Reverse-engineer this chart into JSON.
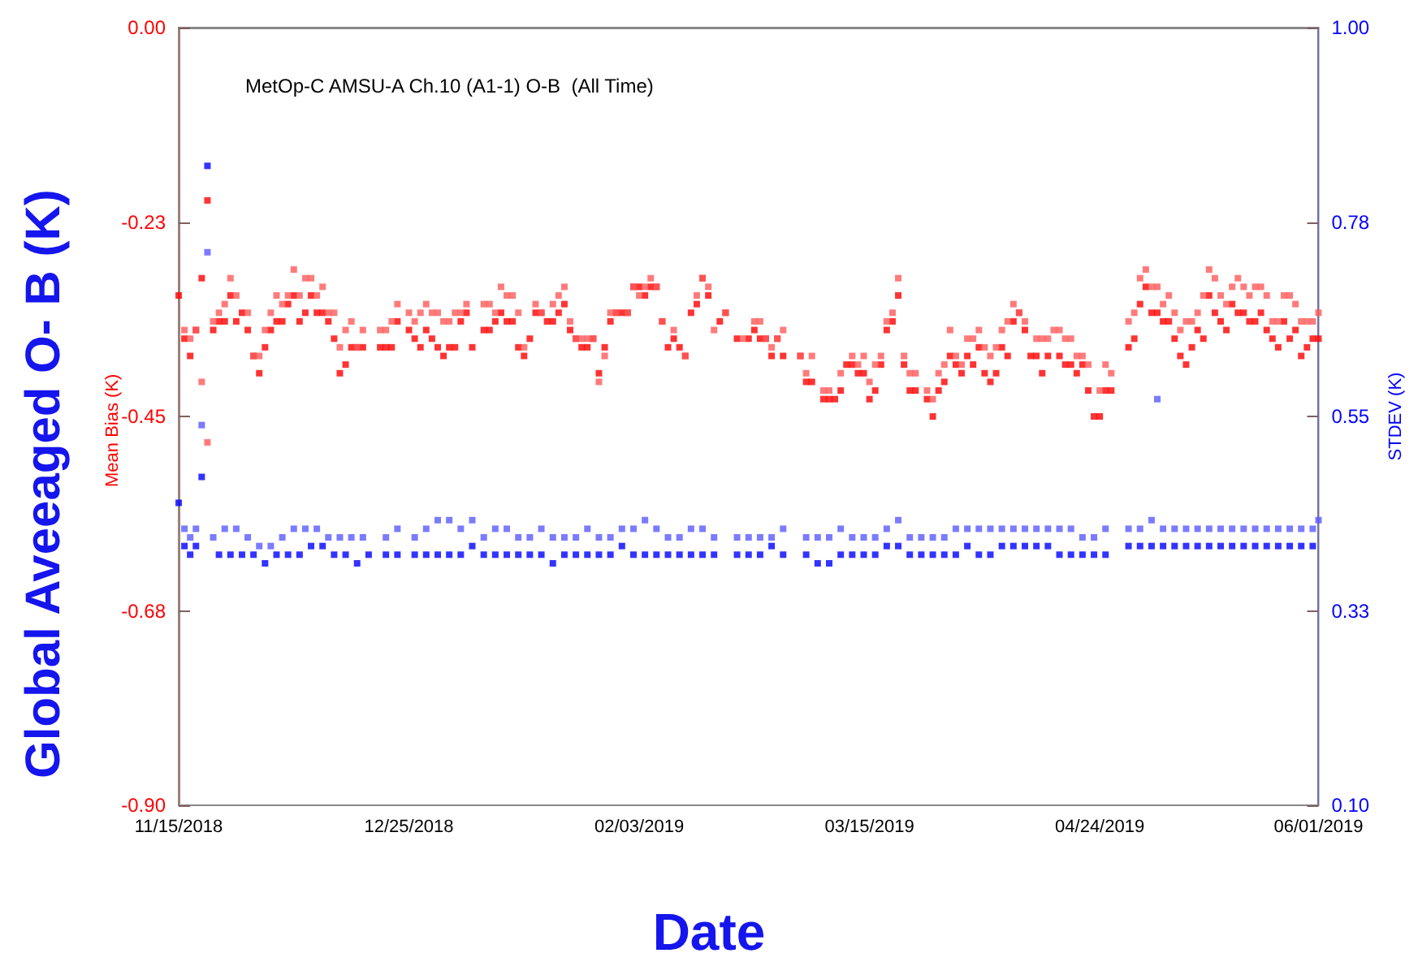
{
  "chart_data": {
    "type": "scatter",
    "title": "MetOp-C AMSU-A Ch.10 (A1-1) O-B  (All Time)",
    "xlabel": "Date",
    "ylabel": "Global Aveeaged O- B (K)",
    "y2label": "STDEV (K)",
    "annotations": [
      "Mean Bias (K)"
    ],
    "marker": "square",
    "xlim": [
      "2018-11-15",
      "2019-06-01"
    ],
    "xticks": [
      {
        "value": "2018-11-15",
        "label": "11/15/2018"
      },
      {
        "value": "2018-12-25",
        "label": "12/25/2018"
      },
      {
        "value": "2019-02-03",
        "label": "02/03/2019"
      },
      {
        "value": "2019-03-15",
        "label": "03/15/2019"
      },
      {
        "value": "2019-04-24",
        "label": "04/24/2019"
      },
      {
        "value": "2019-06-01",
        "label": "06/01/2019"
      }
    ],
    "ylim": [
      -0.9,
      0
    ],
    "yticks": [
      {
        "value": -0.9,
        "label": "-0.90"
      },
      {
        "value": -0.675,
        "label": "-0.68"
      },
      {
        "value": -0.45,
        "label": "-0.45"
      },
      {
        "value": -0.225,
        "label": "-0.23"
      },
      {
        "value": 0,
        "label": "0.00"
      }
    ],
    "y2lim": [
      0.1,
      1
    ],
    "y2ticks": [
      {
        "value": 0.1,
        "label": "0.10"
      },
      {
        "value": 0.325,
        "label": "0.33"
      },
      {
        "value": 0.55,
        "label": "0.55"
      },
      {
        "value": 0.775,
        "label": "0.78"
      },
      {
        "value": 1,
        "label": "1.00"
      }
    ],
    "series": [
      {
        "color": "#ff0000",
        "x": [
          "2018-11-15",
          "2018-11-16",
          "2018-11-17",
          "2018-11-18",
          "2018-11-19",
          "2018-11-20",
          "2018-11-21",
          "2018-11-22",
          "2018-11-23",
          "2018-11-24",
          "2018-11-25",
          "2018-11-26",
          "2018-11-27",
          "2018-11-28",
          "2018-11-29",
          "2018-11-30",
          "2018-12-01",
          "2018-12-02",
          "2018-12-03",
          "2018-12-04",
          "2018-12-05",
          "2018-12-06",
          "2018-12-07",
          "2018-12-08",
          "2018-12-09",
          "2018-12-10",
          "2018-12-11",
          "2018-12-12",
          "2018-12-13",
          "2018-12-14",
          "2018-12-15",
          "2018-12-16",
          "2018-12-17",
          "2018-12-20",
          "2018-12-21",
          "2018-12-22",
          "2018-12-23",
          "2018-12-25",
          "2018-12-26",
          "2018-12-27",
          "2018-12-28",
          "2018-12-29",
          "2018-12-30",
          "2018-12-31",
          "2019-01-01",
          "2019-01-02",
          "2019-01-03",
          "2019-01-04",
          "2019-01-05",
          "2019-01-07",
          "2019-01-08",
          "2019-01-09",
          "2019-01-10",
          "2019-01-11",
          "2019-01-12",
          "2019-01-13",
          "2019-01-14",
          "2019-01-15",
          "2019-01-16",
          "2019-01-17",
          "2019-01-18",
          "2019-01-19",
          "2019-01-20",
          "2019-01-21",
          "2019-01-22",
          "2019-01-23",
          "2019-01-24",
          "2019-01-25",
          "2019-01-26",
          "2019-01-27",
          "2019-01-28",
          "2019-01-29",
          "2019-01-30",
          "2019-01-31",
          "2019-02-01",
          "2019-02-02",
          "2019-02-03",
          "2019-02-04",
          "2019-02-05",
          "2019-02-06",
          "2019-02-07",
          "2019-02-08",
          "2019-02-09",
          "2019-02-10",
          "2019-02-11",
          "2019-02-12",
          "2019-02-13",
          "2019-02-14",
          "2019-02-15",
          "2019-02-17",
          "2019-02-18",
          "2019-02-20",
          "2019-02-22",
          "2019-02-23",
          "2019-02-24",
          "2019-02-25",
          "2019-02-26",
          "2019-02-27",
          "2019-02-28",
          "2019-03-03",
          "2019-03-04",
          "2019-03-05",
          "2019-03-07",
          "2019-03-08",
          "2019-03-09",
          "2019-03-10",
          "2019-03-11",
          "2019-03-12",
          "2019-03-13",
          "2019-03-14",
          "2019-03-15",
          "2019-03-16",
          "2019-03-17",
          "2019-03-18",
          "2019-03-19",
          "2019-03-20",
          "2019-03-21",
          "2019-03-22",
          "2019-03-23",
          "2019-03-25",
          "2019-03-26",
          "2019-03-27",
          "2019-03-28",
          "2019-03-29",
          "2019-03-30",
          "2019-03-31",
          "2019-04-01",
          "2019-04-02",
          "2019-04-03",
          "2019-04-04",
          "2019-04-05",
          "2019-04-06",
          "2019-04-07",
          "2019-04-08",
          "2019-04-09",
          "2019-04-10",
          "2019-04-11",
          "2019-04-12",
          "2019-04-13",
          "2019-04-14",
          "2019-04-15",
          "2019-04-17",
          "2019-04-18",
          "2019-04-19",
          "2019-04-20",
          "2019-04-21",
          "2019-04-22",
          "2019-04-23",
          "2019-04-24",
          "2019-04-25",
          "2019-04-26",
          "2019-04-29",
          "2019-04-30",
          "2019-05-01",
          "2019-05-02",
          "2019-05-03",
          "2019-05-04",
          "2019-05-05",
          "2019-05-06",
          "2019-05-07",
          "2019-05-08",
          "2019-05-09",
          "2019-05-10",
          "2019-05-11",
          "2019-05-12",
          "2019-05-13",
          "2019-05-14",
          "2019-05-15",
          "2019-05-16",
          "2019-05-17",
          "2019-05-18",
          "2019-05-19",
          "2019-05-20",
          "2019-05-21",
          "2019-05-22",
          "2019-05-23",
          "2019-05-24",
          "2019-05-25",
          "2019-05-26",
          "2019-05-27",
          "2019-05-28",
          "2019-05-29",
          "2019-05-30",
          "2019-05-31",
          "2019-06-01"
        ],
        "values": [
          -0.31,
          -0.36,
          -0.38,
          -0.35,
          -0.29,
          -0.2,
          -0.35,
          -0.34,
          -0.34,
          -0.31,
          -0.34,
          -0.33,
          -0.35,
          -0.38,
          -0.4,
          -0.37,
          -0.35,
          -0.34,
          -0.34,
          -0.32,
          -0.31,
          -0.34,
          -0.33,
          -0.31,
          -0.33,
          -0.33,
          -0.34,
          -0.36,
          -0.4,
          -0.39,
          -0.37,
          -0.37,
          -0.37,
          -0.37,
          -0.37,
          -0.37,
          -0.34,
          -0.35,
          -0.36,
          -0.37,
          -0.35,
          -0.36,
          -0.37,
          -0.38,
          -0.37,
          -0.37,
          -0.34,
          -0.33,
          -0.37,
          -0.35,
          -0.35,
          -0.34,
          -0.33,
          -0.34,
          -0.34,
          -0.37,
          -0.38,
          -0.36,
          -0.33,
          -0.33,
          -0.34,
          -0.34,
          -0.33,
          -0.32,
          -0.35,
          -0.36,
          -0.37,
          -0.37,
          -0.36,
          -0.4,
          -0.37,
          -0.34,
          -0.33,
          -0.33,
          -0.33,
          -0.3,
          -0.3,
          -0.31,
          -0.3,
          -0.3,
          -0.34,
          -0.37,
          -0.36,
          -0.37,
          -0.38,
          -0.33,
          -0.32,
          -0.29,
          -0.31,
          -0.34,
          -0.33,
          -0.36,
          -0.36,
          -0.35,
          -0.36,
          -0.36,
          -0.38,
          -0.36,
          -0.38,
          -0.38,
          -0.41,
          -0.41,
          -0.43,
          -0.43,
          -0.43,
          -0.42,
          -0.39,
          -0.39,
          -0.4,
          -0.4,
          -0.43,
          -0.42,
          -0.39,
          -0.35,
          -0.34,
          -0.31,
          -0.39,
          -0.42,
          -0.42,
          -0.43,
          -0.45,
          -0.42,
          -0.41,
          -0.38,
          -0.39,
          -0.4,
          -0.38,
          -0.39,
          -0.37,
          -0.4,
          -0.41,
          -0.4,
          -0.37,
          -0.38,
          -0.34,
          -0.33,
          -0.35,
          -0.38,
          -0.38,
          -0.4,
          -0.38,
          -0.38,
          -0.39,
          -0.39,
          -0.4,
          -0.39,
          -0.42,
          -0.45,
          -0.45,
          -0.42,
          -0.42,
          -0.37,
          -0.36,
          -0.32,
          -0.3,
          -0.33,
          -0.33,
          -0.34,
          -0.34,
          -0.36,
          -0.38,
          -0.39,
          -0.37,
          -0.35,
          -0.36,
          -0.31,
          -0.33,
          -0.34,
          -0.35,
          -0.32,
          -0.33,
          -0.33,
          -0.34,
          -0.34,
          -0.33,
          -0.35,
          -0.36,
          -0.37,
          -0.34,
          -0.36,
          -0.35,
          -0.38,
          -0.37,
          -0.36,
          -0.36
        ]
      },
      {
        "color": "#ff5a5a",
        "x": [
          "2018-11-16",
          "2018-11-17",
          "2018-11-18",
          "2018-11-19",
          "2018-11-20",
          "2018-11-21",
          "2018-11-22",
          "2018-11-23",
          "2018-11-24",
          "2018-11-25",
          "2018-11-27",
          "2018-11-28",
          "2018-11-29",
          "2018-11-30",
          "2018-12-01",
          "2018-12-02",
          "2018-12-03",
          "2018-12-04",
          "2018-12-05",
          "2018-12-06",
          "2018-12-07",
          "2018-12-08",
          "2018-12-09",
          "2018-12-10",
          "2018-12-11",
          "2018-12-12",
          "2018-12-13",
          "2018-12-14",
          "2018-12-15",
          "2018-12-16",
          "2018-12-17",
          "2018-12-20",
          "2018-12-21",
          "2018-12-22",
          "2018-12-23",
          "2018-12-25",
          "2018-12-26",
          "2018-12-27",
          "2018-12-28",
          "2018-12-29",
          "2018-12-30",
          "2018-12-31",
          "2019-01-01",
          "2019-01-02",
          "2019-01-03",
          "2019-01-04",
          "2019-01-07",
          "2019-01-08",
          "2019-01-09",
          "2019-01-10",
          "2019-01-11",
          "2019-01-12",
          "2019-01-13",
          "2019-01-14",
          "2019-01-16",
          "2019-01-17",
          "2019-01-19",
          "2019-01-20",
          "2019-01-21",
          "2019-01-22",
          "2019-01-23",
          "2019-01-24",
          "2019-01-25",
          "2019-01-26",
          "2019-01-27",
          "2019-01-28",
          "2019-01-29",
          "2019-01-30",
          "2019-02-01",
          "2019-02-02",
          "2019-02-03",
          "2019-02-04",
          "2019-02-05",
          "2019-02-06",
          "2019-02-07",
          "2019-02-09",
          "2019-02-11",
          "2019-02-13",
          "2019-02-14",
          "2019-02-15",
          "2019-02-16",
          "2019-02-18",
          "2019-02-21",
          "2019-02-23",
          "2019-02-24",
          "2019-02-25",
          "2019-02-26",
          "2019-02-27",
          "2019-02-28",
          "2019-03-03",
          "2019-03-04",
          "2019-03-05",
          "2019-03-07",
          "2019-03-08",
          "2019-03-10",
          "2019-03-12",
          "2019-03-13",
          "2019-03-14",
          "2019-03-15",
          "2019-03-16",
          "2019-03-17",
          "2019-03-18",
          "2019-03-19",
          "2019-03-20",
          "2019-03-21",
          "2019-03-22",
          "2019-03-23",
          "2019-03-25",
          "2019-03-26",
          "2019-03-27",
          "2019-03-28",
          "2019-03-29",
          "2019-03-30",
          "2019-03-31",
          "2019-04-01",
          "2019-04-02",
          "2019-04-03",
          "2019-04-04",
          "2019-04-05",
          "2019-04-06",
          "2019-04-07",
          "2019-04-08",
          "2019-04-09",
          "2019-04-10",
          "2019-04-11",
          "2019-04-13",
          "2019-04-14",
          "2019-04-15",
          "2019-04-16",
          "2019-04-17",
          "2019-04-18",
          "2019-04-19",
          "2019-04-20",
          "2019-04-21",
          "2019-04-22",
          "2019-04-24",
          "2019-04-25",
          "2019-04-26",
          "2019-04-29",
          "2019-04-30",
          "2019-05-01",
          "2019-05-02",
          "2019-05-03",
          "2019-05-04",
          "2019-05-05",
          "2019-05-06",
          "2019-05-07",
          "2019-05-08",
          "2019-05-09",
          "2019-05-10",
          "2019-05-11",
          "2019-05-12",
          "2019-05-13",
          "2019-05-14",
          "2019-05-15",
          "2019-05-16",
          "2019-05-17",
          "2019-05-18",
          "2019-05-19",
          "2019-05-20",
          "2019-05-21",
          "2019-05-22",
          "2019-05-23",
          "2019-05-24",
          "2019-05-25",
          "2019-05-26",
          "2019-05-27",
          "2019-05-28",
          "2019-05-29",
          "2019-05-30",
          "2019-05-31",
          "2019-06-01"
        ],
        "values": [
          -0.35,
          -0.36,
          -0.35,
          -0.41,
          -0.48,
          -0.34,
          -0.33,
          -0.32,
          -0.29,
          -0.31,
          -0.33,
          -0.38,
          -0.38,
          -0.35,
          -0.33,
          -0.31,
          -0.32,
          -0.31,
          -0.28,
          -0.31,
          -0.29,
          -0.29,
          -0.31,
          -0.3,
          -0.33,
          -0.33,
          -0.37,
          -0.35,
          -0.34,
          -0.37,
          -0.35,
          -0.35,
          -0.35,
          -0.34,
          -0.32,
          -0.33,
          -0.34,
          -0.33,
          -0.32,
          -0.33,
          -0.33,
          -0.34,
          -0.34,
          -0.33,
          -0.33,
          -0.32,
          -0.32,
          -0.32,
          -0.33,
          -0.3,
          -0.31,
          -0.31,
          -0.33,
          -0.37,
          -0.32,
          -0.33,
          -0.32,
          -0.31,
          -0.3,
          -0.34,
          -0.36,
          -0.36,
          -0.36,
          -0.36,
          -0.41,
          -0.38,
          -0.33,
          -0.33,
          -0.33,
          -0.3,
          -0.31,
          -0.3,
          -0.29,
          -0.3,
          -0.34,
          -0.35,
          -0.38,
          -0.31,
          -0.29,
          -0.3,
          -0.35,
          -0.33,
          -0.36,
          -0.34,
          -0.34,
          -0.36,
          -0.37,
          -0.36,
          -0.35,
          -0.38,
          -0.4,
          -0.38,
          -0.42,
          -0.42,
          -0.4,
          -0.38,
          -0.39,
          -0.38,
          -0.41,
          -0.39,
          -0.38,
          -0.34,
          -0.33,
          -0.29,
          -0.38,
          -0.4,
          -0.4,
          -0.42,
          -0.43,
          -0.4,
          -0.39,
          -0.35,
          -0.38,
          -0.39,
          -0.36,
          -0.36,
          -0.35,
          -0.37,
          -0.38,
          -0.37,
          -0.35,
          -0.34,
          -0.32,
          -0.33,
          -0.34,
          -0.36,
          -0.36,
          -0.36,
          -0.35,
          -0.35,
          -0.36,
          -0.36,
          -0.38,
          -0.38,
          -0.39,
          -0.42,
          -0.39,
          -0.4,
          -0.34,
          -0.33,
          -0.29,
          -0.28,
          -0.3,
          -0.3,
          -0.32,
          -0.31,
          -0.33,
          -0.35,
          -0.34,
          -0.34,
          -0.33,
          -0.31,
          -0.28,
          -0.29,
          -0.31,
          -0.32,
          -0.3,
          -0.29,
          -0.3,
          -0.31,
          -0.3,
          -0.3,
          -0.31,
          -0.34,
          -0.34,
          -0.31,
          -0.31,
          -0.32,
          -0.34,
          -0.34,
          -0.34,
          -0.33
        ]
      },
      {
        "color": "#0000ff",
        "axis": "y2",
        "x": [
          "2018-11-15",
          "2018-11-16",
          "2018-11-17",
          "2018-11-18",
          "2018-11-19",
          "2018-11-20",
          "2018-11-22",
          "2018-11-24",
          "2018-11-26",
          "2018-11-28",
          "2018-11-30",
          "2018-12-02",
          "2018-12-04",
          "2018-12-06",
          "2018-12-08",
          "2018-12-10",
          "2018-12-12",
          "2018-12-14",
          "2018-12-16",
          "2018-12-18",
          "2018-12-21",
          "2018-12-23",
          "2018-12-26",
          "2018-12-28",
          "2018-12-30",
          "2019-01-01",
          "2019-01-03",
          "2019-01-05",
          "2019-01-07",
          "2019-01-09",
          "2019-01-11",
          "2019-01-13",
          "2019-01-15",
          "2019-01-17",
          "2019-01-19",
          "2019-01-21",
          "2019-01-23",
          "2019-01-25",
          "2019-01-27",
          "2019-01-29",
          "2019-01-31",
          "2019-02-02",
          "2019-02-04",
          "2019-02-06",
          "2019-02-08",
          "2019-02-10",
          "2019-02-12",
          "2019-02-14",
          "2019-02-16",
          "2019-02-20",
          "2019-02-22",
          "2019-02-24",
          "2019-02-26",
          "2019-02-28",
          "2019-03-04",
          "2019-03-06",
          "2019-03-08",
          "2019-03-10",
          "2019-03-12",
          "2019-03-14",
          "2019-03-16",
          "2019-03-18",
          "2019-03-20",
          "2019-03-22",
          "2019-03-24",
          "2019-03-26",
          "2019-03-28",
          "2019-03-30",
          "2019-04-01",
          "2019-04-03",
          "2019-04-05",
          "2019-04-07",
          "2019-04-09",
          "2019-04-11",
          "2019-04-13",
          "2019-04-15",
          "2019-04-17",
          "2019-04-19",
          "2019-04-21",
          "2019-04-23",
          "2019-04-25",
          "2019-04-29",
          "2019-05-01",
          "2019-05-03",
          "2019-05-05",
          "2019-05-07",
          "2019-05-09",
          "2019-05-11",
          "2019-05-13",
          "2019-05-15",
          "2019-05-17",
          "2019-05-19",
          "2019-05-21",
          "2019-05-23",
          "2019-05-25",
          "2019-05-27",
          "2019-05-29",
          "2019-05-31"
        ],
        "values": [
          0.45,
          0.4,
          0.39,
          0.4,
          0.48,
          0.84,
          0.39,
          0.39,
          0.39,
          0.39,
          0.38,
          0.39,
          0.39,
          0.39,
          0.4,
          0.4,
          0.39,
          0.39,
          0.38,
          0.39,
          0.39,
          0.39,
          0.39,
          0.39,
          0.39,
          0.39,
          0.39,
          0.4,
          0.39,
          0.39,
          0.39,
          0.39,
          0.39,
          0.39,
          0.38,
          0.39,
          0.39,
          0.39,
          0.39,
          0.39,
          0.4,
          0.39,
          0.39,
          0.39,
          0.39,
          0.39,
          0.39,
          0.39,
          0.39,
          0.39,
          0.39,
          0.39,
          0.4,
          0.39,
          0.39,
          0.38,
          0.38,
          0.39,
          0.39,
          0.39,
          0.39,
          0.4,
          0.4,
          0.39,
          0.39,
          0.39,
          0.39,
          0.39,
          0.4,
          0.39,
          0.39,
          0.4,
          0.4,
          0.4,
          0.4,
          0.4,
          0.39,
          0.39,
          0.39,
          0.39,
          0.39,
          0.4,
          0.4,
          0.4,
          0.4,
          0.4,
          0.4,
          0.4,
          0.4,
          0.4,
          0.4,
          0.4,
          0.4,
          0.4,
          0.4,
          0.4,
          0.4,
          0.4
        ]
      },
      {
        "color": "#5a5aff",
        "axis": "y2",
        "x": [
          "2018-11-16",
          "2018-11-17",
          "2018-11-18",
          "2018-11-19",
          "2018-11-20",
          "2018-11-21",
          "2018-11-23",
          "2018-11-25",
          "2018-11-27",
          "2018-11-29",
          "2018-12-01",
          "2018-12-03",
          "2018-12-05",
          "2018-12-07",
          "2018-12-09",
          "2018-12-11",
          "2018-12-13",
          "2018-12-15",
          "2018-12-17",
          "2018-12-21",
          "2018-12-23",
          "2018-12-26",
          "2018-12-28",
          "2018-12-30",
          "2019-01-01",
          "2019-01-03",
          "2019-01-05",
          "2019-01-07",
          "2019-01-09",
          "2019-01-11",
          "2019-01-13",
          "2019-01-15",
          "2019-01-17",
          "2019-01-19",
          "2019-01-21",
          "2019-01-23",
          "2019-01-25",
          "2019-01-27",
          "2019-01-29",
          "2019-01-31",
          "2019-02-02",
          "2019-02-04",
          "2019-02-06",
          "2019-02-08",
          "2019-02-10",
          "2019-02-12",
          "2019-02-14",
          "2019-02-16",
          "2019-02-20",
          "2019-02-22",
          "2019-02-24",
          "2019-02-26",
          "2019-02-28",
          "2019-03-04",
          "2019-03-06",
          "2019-03-08",
          "2019-03-10",
          "2019-03-12",
          "2019-03-14",
          "2019-03-16",
          "2019-03-18",
          "2019-03-20",
          "2019-03-22",
          "2019-03-24",
          "2019-03-26",
          "2019-03-28",
          "2019-03-30",
          "2019-04-01",
          "2019-04-03",
          "2019-04-05",
          "2019-04-07",
          "2019-04-09",
          "2019-04-11",
          "2019-04-13",
          "2019-04-15",
          "2019-04-17",
          "2019-04-19",
          "2019-04-21",
          "2019-04-23",
          "2019-04-25",
          "2019-04-29",
          "2019-05-01",
          "2019-05-03",
          "2019-05-04",
          "2019-05-05",
          "2019-05-07",
          "2019-05-09",
          "2019-05-11",
          "2019-05-13",
          "2019-05-15",
          "2019-05-17",
          "2019-05-19",
          "2019-05-21",
          "2019-05-23",
          "2019-05-25",
          "2019-05-27",
          "2019-05-29",
          "2019-05-31",
          "2019-06-01"
        ],
        "values": [
          0.42,
          0.41,
          0.42,
          0.54,
          0.74,
          0.41,
          0.42,
          0.42,
          0.41,
          0.4,
          0.4,
          0.41,
          0.42,
          0.42,
          0.42,
          0.41,
          0.41,
          0.41,
          0.41,
          0.41,
          0.42,
          0.41,
          0.42,
          0.43,
          0.43,
          0.42,
          0.43,
          0.41,
          0.42,
          0.42,
          0.41,
          0.41,
          0.42,
          0.41,
          0.41,
          0.41,
          0.42,
          0.41,
          0.41,
          0.42,
          0.42,
          0.43,
          0.42,
          0.41,
          0.41,
          0.42,
          0.42,
          0.41,
          0.41,
          0.41,
          0.41,
          0.41,
          0.42,
          0.41,
          0.41,
          0.41,
          0.42,
          0.41,
          0.41,
          0.41,
          0.42,
          0.43,
          0.41,
          0.41,
          0.41,
          0.41,
          0.42,
          0.42,
          0.42,
          0.42,
          0.42,
          0.42,
          0.42,
          0.42,
          0.42,
          0.42,
          0.42,
          0.41,
          0.41,
          0.42,
          0.42,
          0.42,
          0.43,
          0.57,
          0.42,
          0.42,
          0.42,
          0.42,
          0.42,
          0.42,
          0.42,
          0.42,
          0.42,
          0.42,
          0.42,
          0.42,
          0.42,
          0.42,
          0.43
        ]
      }
    ]
  }
}
